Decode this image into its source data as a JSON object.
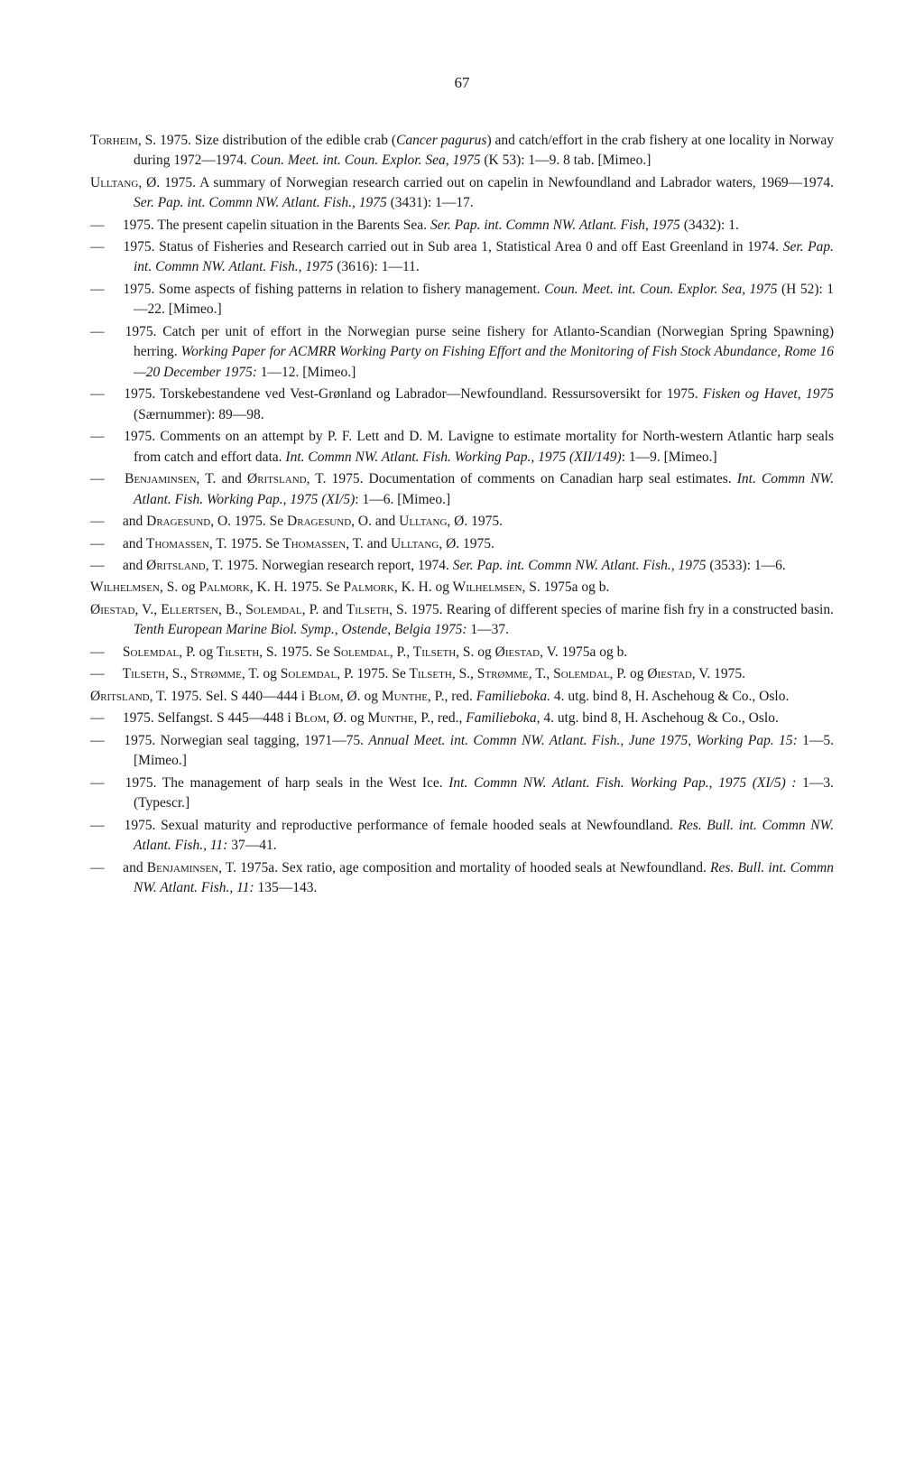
{
  "pageNumber": "67",
  "entries": [
    {
      "type": "main",
      "html": "T<span class='smallcaps'>orheim</span>, S. 1975. Size distribution of the edible crab (<i>Cancer pagurus</i>) and catch/effort in the crab fishery at one locality in Norway during 1972—1974. <i>Coun. Meet. int. Coun. Explor. Sea, 1975</i> (K 53): 1—9. 8 tab. [Mimeo.]"
    },
    {
      "type": "main",
      "html": "U<span class='smallcaps'>lltang</span>, Ø. 1975. A summary of Norwegian research carried out on capelin in Newfoundland and Labrador waters, 1969—1974. <i>Ser. Pap. int. Commn NW. Atlant. Fish., 1975</i> (3431): 1—17."
    },
    {
      "type": "sub",
      "html": "1975. The present capelin situation in the Barents Sea. <i>Ser. Pap. int. Commn NW. Atlant. Fish, 1975</i> (3432): 1."
    },
    {
      "type": "sub",
      "html": "1975. Status of Fisheries and Research carried out in Sub area 1, Statistical Area 0 and off East Greenland in 1974. <i>Ser. Pap. int. Commn NW. Atlant. Fish., 1975</i> (3616): 1—11."
    },
    {
      "type": "sub",
      "html": "1975. Some aspects of fishing patterns in relation to fishery management. <i>Coun. Meet. int. Coun. Explor. Sea, 1975</i> (H 52): 1—22. [Mimeo.]"
    },
    {
      "type": "sub",
      "html": "1975. Catch per unit of effort in the Norwegian purse seine fishery for Atlanto-Scandian (Norwegian Spring Spawning) herring. <i>Working Paper for ACMRR Working Party on Fishing Effort and the Monitoring of Fish Stock Abundance, Rome 16—20 December 1975:</i> 1—12. [Mimeo.]"
    },
    {
      "type": "sub",
      "html": "1975. Torskebestandene ved Vest-Grønland og Labrador—Newfoundland. Ressursoversikt for 1975. <i>Fisken og Havet, 1975</i> (Særnummer): 89—98."
    },
    {
      "type": "sub",
      "html": "1975. Comments on an attempt by P. F. Lett and D. M. Lavigne to estimate mortality for North-western Atlantic harp seals from catch and effort data. <i>Int. Commn NW. Atlant. Fish. Working Pap., 1975 (XII/149)</i>: 1—9. [Mimeo.]"
    },
    {
      "type": "sub",
      "html": "B<span class='smallcaps'>enjaminsen</span>, T. and Ø<span class='smallcaps'>ritsland</span>, T. 1975. Documentation of comments on Canadian harp seal estimates. <i>Int. Commn NW. Atlant. Fish. Working Pap., 1975 (XI/5)</i>: 1—6. [Mimeo.]"
    },
    {
      "type": "sub",
      "html": "and D<span class='smallcaps'>ragesund</span>, O. 1975. Se D<span class='smallcaps'>ragesund</span>, O. and U<span class='smallcaps'>lltang</span>, Ø. 1975."
    },
    {
      "type": "sub",
      "html": "and T<span class='smallcaps'>homassen</span>, T. 1975. Se T<span class='smallcaps'>homassen</span>, T. and U<span class='smallcaps'>lltang</span>, Ø. 1975."
    },
    {
      "type": "sub",
      "html": "and Ø<span class='smallcaps'>ritsland</span>, T. 1975. Norwegian research report, 1974. <i>Ser. Pap. int. Commn NW. Atlant. Fish., 1975</i> (3533): 1—6."
    },
    {
      "type": "main",
      "html": "W<span class='smallcaps'>ilhelmsen</span>, S. og P<span class='smallcaps'>almork</span>, K. H. 1975. Se P<span class='smallcaps'>almork</span>, K. H. og W<span class='smallcaps'>ilhelmsen</span>, S. 1975a og b."
    },
    {
      "type": "main",
      "html": "Ø<span class='smallcaps'>iestad</span>, V., E<span class='smallcaps'>llertsen</span>, B., S<span class='smallcaps'>olemdal</span>, P. and T<span class='smallcaps'>ilseth</span>, S. 1975. Rearing of different species of marine fish fry in a constructed basin. <i>Tenth European Marine Biol. Symp., Ostende, Belgia 1975:</i> 1—37."
    },
    {
      "type": "sub",
      "html": "S<span class='smallcaps'>olemdal</span>, P. og T<span class='smallcaps'>ilseth</span>, S. 1975. Se S<span class='smallcaps'>olemdal</span>, P., T<span class='smallcaps'>ilseth</span>, S. og Ø<span class='smallcaps'>iestad</span>, V. 1975a og b."
    },
    {
      "type": "sub",
      "html": "T<span class='smallcaps'>ilseth</span>, S., S<span class='smallcaps'>trømme</span>, T. og S<span class='smallcaps'>olemdal</span>, P. 1975. Se T<span class='smallcaps'>ilseth</span>, S., S<span class='smallcaps'>trømme</span>, T., S<span class='smallcaps'>olemdal</span>, P. og Ø<span class='smallcaps'>iestad</span>, V. 1975."
    },
    {
      "type": "main",
      "html": "Ø<span class='smallcaps'>ritsland</span>, T. 1975. Sel. S 440—444 i B<span class='smallcaps'>lom</span>, Ø. og M<span class='smallcaps'>unthe</span>, P., red. <i>Familieboka.</i> 4. utg. bind 8, H. Aschehoug &amp; Co., Oslo."
    },
    {
      "type": "sub",
      "html": "1975. Selfangst. S 445—448 i B<span class='smallcaps'>lom</span>, Ø. og M<span class='smallcaps'>unthe</span>, P., red., <i>Familieboka,</i> 4. utg. bind 8, H. Aschehoug &amp; Co., Oslo."
    },
    {
      "type": "sub",
      "html": "1975. Norwegian seal tagging, 1971—75. <i>Annual Meet. int. Commn NW. Atlant. Fish., June 1975, Working Pap. 15:</i> 1—5. [Mimeo.]"
    },
    {
      "type": "sub",
      "html": "1975. The management of harp seals in the West Ice. <i>Int. Commn NW. Atlant. Fish. Working Pap., 1975 (XI/5) :</i> 1—3. (Typescr.]"
    },
    {
      "type": "sub",
      "html": "1975. Sexual maturity and reproductive performance of female hooded seals at Newfoundland. <i>Res. Bull. int. Commn NW. Atlant. Fish., 11:</i> 37—41."
    },
    {
      "type": "sub",
      "html": "and B<span class='smallcaps'>enjaminsen</span>, T. 1975a. Sex ratio, age composition and mortality of hooded seals at Newfoundland. <i>Res. Bull. int. Commn NW. Atlant. Fish., 11:</i> 135—143."
    }
  ]
}
